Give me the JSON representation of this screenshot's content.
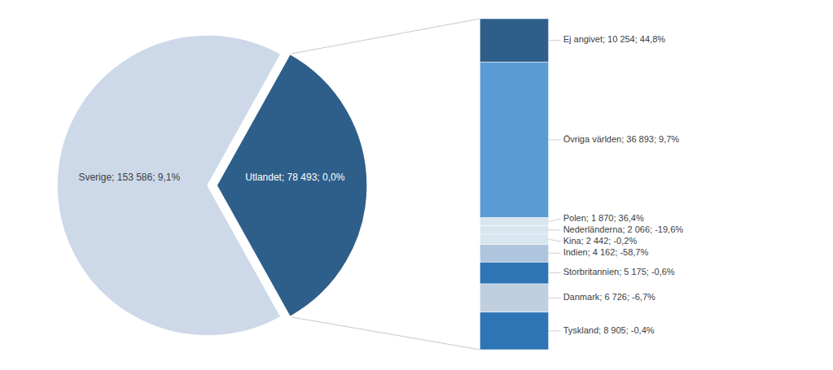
{
  "chart_data": [
    {
      "type": "pie",
      "categories": [
        "Sverige; 153 586; 9,1%",
        "Utlandet; 78 493; 0,0%"
      ],
      "values": [
        153586,
        78493
      ],
      "colors": [
        "#cdd9e8",
        "#2e5f8a"
      ]
    },
    {
      "type": "bar",
      "stacked": true,
      "tick_labels": false,
      "categories": [
        null
      ],
      "series": [
        {
          "name": "Tyskland; 8 905; -0,4%",
          "color": "#2e75b6",
          "values": [
            8905
          ]
        },
        {
          "name": "Danmark; 6 726; -6,7%",
          "color": "#bfcfe0",
          "values": [
            6726
          ]
        },
        {
          "name": "Storbritannien; 5 175; -0,6%",
          "color": "#2e75b6",
          "values": [
            5175
          ]
        },
        {
          "name": "Indien; 4 162; -58,7%",
          "color": "#aec6dd",
          "values": [
            4162
          ]
        },
        {
          "name": "Kina; 2 442; -0,2%",
          "color": "#d8e6f0",
          "values": [
            2442
          ]
        },
        {
          "name": "Nederländerna; 2 066; -19,6%",
          "color": "#d8e6f0",
          "values": [
            2066
          ]
        },
        {
          "name": "Polen; 1 870; 36,4%",
          "color": "#d8e6f0",
          "values": [
            1870
          ]
        },
        {
          "name": "Övriga världen; 36 893; 9,7%",
          "color": "#5b9bd5",
          "values": [
            36893
          ]
        },
        {
          "name": "Ej angivet; 10 254; 44,8%",
          "color": "#2e5f8a",
          "values": [
            10254
          ]
        }
      ]
    }
  ]
}
